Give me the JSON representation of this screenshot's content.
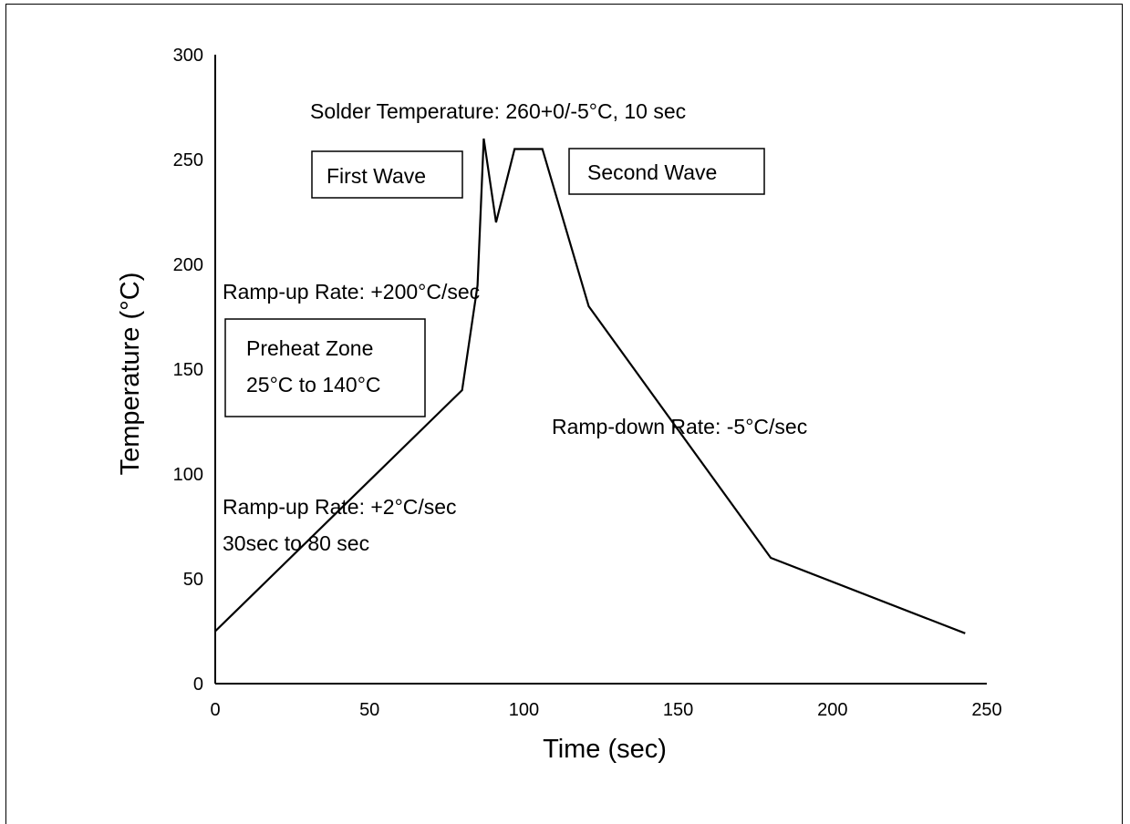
{
  "chart_data": {
    "type": "line",
    "xlabel": "Time (sec)",
    "ylabel": "Temperature (°C)",
    "xlim": [
      0,
      250
    ],
    "ylim": [
      0,
      300
    ],
    "xticks": [
      "0",
      "50",
      "100",
      "150",
      "200",
      "250"
    ],
    "yticks": [
      "0",
      "50",
      "100",
      "150",
      "200",
      "250",
      "300"
    ],
    "grid": false,
    "series": [
      {
        "x": [
          0,
          80,
          85,
          87,
          91,
          97,
          106,
          121,
          180,
          243
        ],
        "y": [
          25,
          140,
          190,
          260,
          220,
          255,
          255,
          180,
          60,
          24
        ]
      }
    ],
    "annotations": {
      "solder_temp": "Solder Temperature: 260+0/-5°C, 10 sec",
      "first_wave": "First Wave",
      "second_wave": "Second Wave",
      "ramp_up_fast": "Ramp-up Rate: +200°C/sec",
      "preheat_line1": "Preheat Zone",
      "preheat_line2": "25°C to 140°C",
      "ramp_down": "Ramp-down Rate: -5°C/sec",
      "ramp_up_slow_line1": "Ramp-up Rate: +2°C/sec",
      "ramp_up_slow_line2": "30sec to 80 sec"
    }
  }
}
